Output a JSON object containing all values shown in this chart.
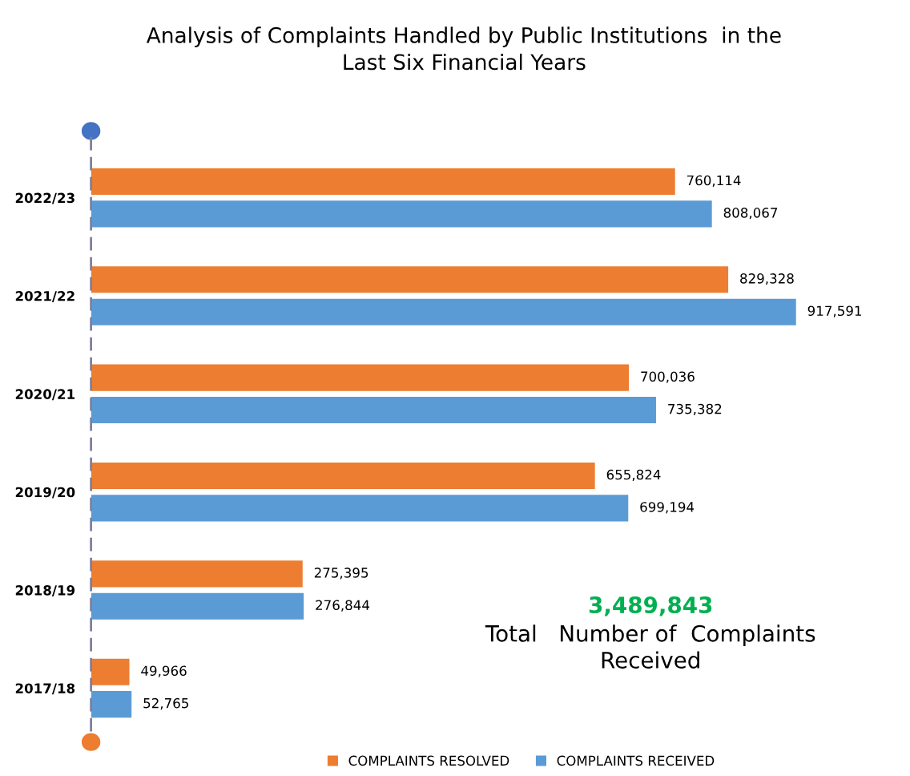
{
  "chart_data": {
    "type": "bar",
    "orientation": "horizontal",
    "title": "Analysis of Complaints Handled by Public Institutions  in the\nLast Six Financial Years",
    "categories": [
      "2022/23",
      "2021/22",
      "2020/21",
      "2019/20",
      "2018/19",
      "2017/18"
    ],
    "series": [
      {
        "name": "COMPLAINTS RESOLVED",
        "color": "#ed7d31",
        "values": [
          760114,
          829328,
          700036,
          655824,
          275395,
          49966
        ],
        "value_labels": [
          "760,114",
          "829,328",
          "700,036",
          "655,824",
          "275,395",
          "49,966"
        ]
      },
      {
        "name": "COMPLAINTS RECEIVED",
        "color": "#5b9bd5",
        "values": [
          808067,
          917591,
          735382,
          699194,
          276844,
          52765
        ],
        "value_labels": [
          "808,067",
          "917,591",
          "735,382",
          "699,194",
          "276,844",
          "52,765"
        ]
      }
    ],
    "annotations": [
      "3,489,843",
      "Total   Number of  Complaints\nReceived"
    ],
    "legend": "bottom",
    "grid": false,
    "tick_labels": "y"
  }
}
